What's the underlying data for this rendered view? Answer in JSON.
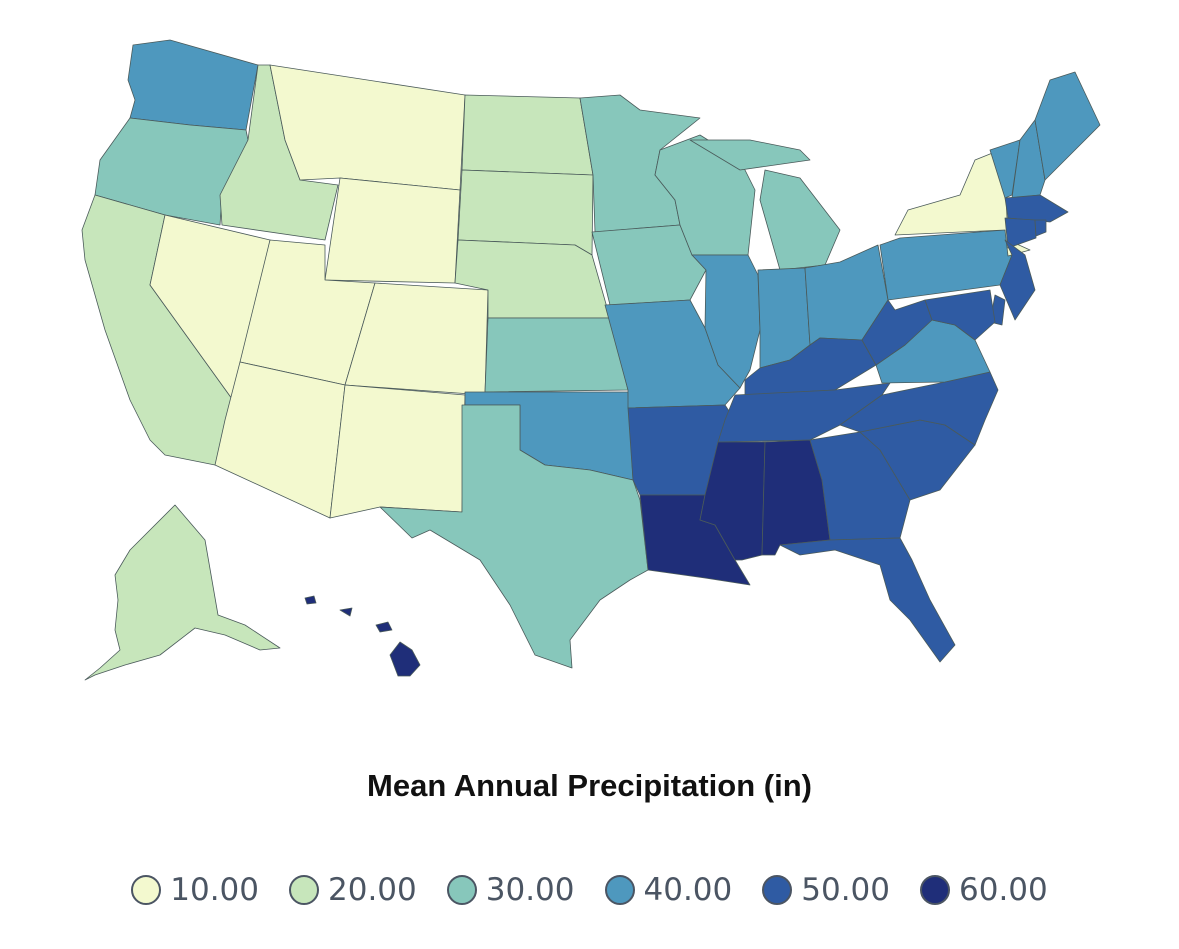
{
  "title": "Mean Annual Precipitation (in)",
  "legend": [
    {
      "label": "10.00",
      "color": "#f3f9cf"
    },
    {
      "label": "20.00",
      "color": "#c7e6bb"
    },
    {
      "label": "30.00",
      "color": "#87c7bb"
    },
    {
      "label": "40.00",
      "color": "#4e98be"
    },
    {
      "label": "50.00",
      "color": "#2f5ba3"
    },
    {
      "label": "60.00",
      "color": "#1f2e79"
    }
  ],
  "states": [
    {
      "code": "WA",
      "bin": 3
    },
    {
      "code": "OR",
      "bin": 2
    },
    {
      "code": "CA",
      "bin": 1
    },
    {
      "code": "ID",
      "bin": 1
    },
    {
      "code": "NV",
      "bin": 0
    },
    {
      "code": "MT",
      "bin": 0
    },
    {
      "code": "WY",
      "bin": 0
    },
    {
      "code": "UT",
      "bin": 0
    },
    {
      "code": "AZ",
      "bin": 0
    },
    {
      "code": "CO",
      "bin": 0
    },
    {
      "code": "NM",
      "bin": 0
    },
    {
      "code": "ND",
      "bin": 1
    },
    {
      "code": "SD",
      "bin": 1
    },
    {
      "code": "NE",
      "bin": 1
    },
    {
      "code": "KS",
      "bin": 2
    },
    {
      "code": "OK",
      "bin": 3
    },
    {
      "code": "TX",
      "bin": 2
    },
    {
      "code": "MN",
      "bin": 2
    },
    {
      "code": "IA",
      "bin": 2
    },
    {
      "code": "MO",
      "bin": 3
    },
    {
      "code": "AR",
      "bin": 4
    },
    {
      "code": "LA",
      "bin": 5
    },
    {
      "code": "WI",
      "bin": 2
    },
    {
      "code": "IL",
      "bin": 3
    },
    {
      "code": "MI",
      "bin": 2
    },
    {
      "code": "IN",
      "bin": 3
    },
    {
      "code": "OH",
      "bin": 3
    },
    {
      "code": "KY",
      "bin": 4
    },
    {
      "code": "TN",
      "bin": 4
    },
    {
      "code": "MS",
      "bin": 5
    },
    {
      "code": "AL",
      "bin": 5
    },
    {
      "code": "GA",
      "bin": 4
    },
    {
      "code": "FL",
      "bin": 4
    },
    {
      "code": "SC",
      "bin": 4
    },
    {
      "code": "NC",
      "bin": 4
    },
    {
      "code": "VA",
      "bin": 3
    },
    {
      "code": "WV",
      "bin": 4
    },
    {
      "code": "PA",
      "bin": 3
    },
    {
      "code": "NY",
      "bin": 0
    },
    {
      "code": "VT",
      "bin": 3
    },
    {
      "code": "NH",
      "bin": 3
    },
    {
      "code": "ME",
      "bin": 3
    },
    {
      "code": "MA",
      "bin": 4
    },
    {
      "code": "CT",
      "bin": 4
    },
    {
      "code": "RI",
      "bin": 4
    },
    {
      "code": "NJ",
      "bin": 4
    },
    {
      "code": "DE",
      "bin": 4
    },
    {
      "code": "MD",
      "bin": 4
    },
    {
      "code": "AK",
      "bin": 1
    },
    {
      "code": "HI",
      "bin": 5
    }
  ]
}
